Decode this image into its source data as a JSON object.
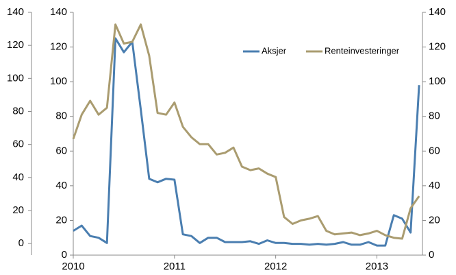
{
  "chart_data": {
    "type": "line",
    "x": [
      2010,
      2010.083,
      2010.167,
      2010.25,
      2010.333,
      2010.417,
      2010.5,
      2010.583,
      2010.667,
      2010.75,
      2010.833,
      2010.917,
      2011,
      2011.083,
      2011.167,
      2011.25,
      2011.333,
      2011.417,
      2011.5,
      2011.583,
      2011.667,
      2011.75,
      2011.833,
      2011.917,
      2012,
      2012.083,
      2012.167,
      2012.25,
      2012.333,
      2012.417,
      2012.5,
      2012.583,
      2012.667,
      2012.75,
      2012.833,
      2012.917,
      2013,
      2013.083,
      2013.167,
      2013.25,
      2013.333,
      2013.417
    ],
    "series": [
      {
        "name": "Aksjer",
        "color": "#4a7eb0",
        "values": [
          14,
          17,
          11,
          10,
          7,
          125,
          117,
          123,
          84,
          44,
          42,
          44,
          43.5,
          12,
          11,
          7,
          10,
          10,
          7.5,
          7.5,
          7.5,
          8,
          6.5,
          8.5,
          7,
          7,
          6.5,
          6.5,
          6,
          6.5,
          6,
          6.5,
          7.5,
          6,
          6,
          7.5,
          5.5,
          5.5,
          23,
          21,
          13,
          98
        ]
      },
      {
        "name": "Renteinvesteringer",
        "color": "#aa9c70",
        "values": [
          67,
          81,
          89,
          81,
          85,
          133,
          122,
          123,
          133,
          115,
          82,
          81,
          88,
          74,
          68,
          64,
          64,
          58,
          59,
          62,
          51,
          49,
          50,
          47,
          45,
          22,
          18,
          20,
          21,
          22.5,
          14,
          12,
          12.5,
          13,
          11.5,
          12.5,
          14,
          11.5,
          10,
          9.5,
          27,
          34
        ]
      }
    ],
    "xlim": [
      2010,
      2013.45
    ],
    "xticks": [
      2010,
      2011,
      2012,
      2013
    ],
    "ylim": [
      0,
      140
    ],
    "yticks": [
      0,
      20,
      40,
      60,
      80,
      100,
      120,
      140
    ],
    "y2lim": [
      0,
      140
    ],
    "y2ticks": [
      0,
      20,
      40,
      60,
      80,
      100,
      120,
      140
    ],
    "y3lim": [
      -7,
      140
    ],
    "y3ticks": [
      0,
      20,
      40,
      60,
      80,
      100,
      120,
      140
    ],
    "legend": "top-right"
  }
}
